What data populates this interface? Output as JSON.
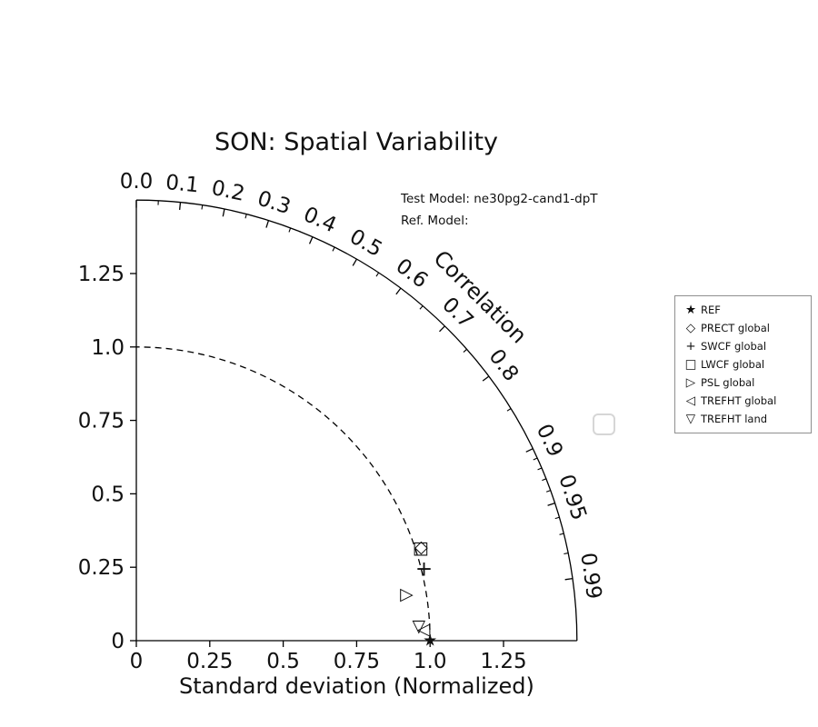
{
  "title": "SON: Spatial Variability",
  "annotations": {
    "test_model": "Test Model: ne30pg2-cand1-dpT",
    "ref_model": "Ref. Model:"
  },
  "chart_data": {
    "type": "scatter",
    "subtype": "taylor-diagram",
    "title": "SON: Spatial Variability",
    "xlabel": "Standard deviation (Normalized)",
    "arc_label": "Correlation",
    "radial_max": 1.5,
    "radial_ticks": [
      "0",
      "0.25",
      "0.5",
      "0.75",
      "1.0",
      "1.25"
    ],
    "radial_tick_values": [
      0,
      0.25,
      0.5,
      0.75,
      1.0,
      1.25
    ],
    "correlation_ticks": [
      {
        "label": "0.0",
        "value": 0.0
      },
      {
        "label": "0.1",
        "value": 0.1
      },
      {
        "label": "0.2",
        "value": 0.2
      },
      {
        "label": "0.3",
        "value": 0.3
      },
      {
        "label": "0.4",
        "value": 0.4
      },
      {
        "label": "0.5",
        "value": 0.5
      },
      {
        "label": "0.6",
        "value": 0.6
      },
      {
        "label": "0.7",
        "value": 0.7
      },
      {
        "label": "0.8",
        "value": 0.8
      },
      {
        "label": "0.9",
        "value": 0.9
      },
      {
        "label": "0.95",
        "value": 0.95
      },
      {
        "label": "0.99",
        "value": 0.99
      }
    ],
    "correlation_minor_ticks": [
      0.05,
      0.15,
      0.25,
      0.35,
      0.45,
      0.55,
      0.65,
      0.75,
      0.85,
      0.91,
      0.92,
      0.93,
      0.94,
      0.96,
      0.97,
      0.98
    ],
    "reference_circle_radius": 1.0,
    "points": [
      {
        "name": "REF",
        "marker": "star",
        "std": 1.0,
        "corr": 1.0
      },
      {
        "name": "PRECT global",
        "marker": "diamond",
        "std": 1.021,
        "corr": 0.95
      },
      {
        "name": "SWCF global",
        "marker": "plus",
        "std": 1.009,
        "corr": 0.9705
      },
      {
        "name": "LWCF global",
        "marker": "square",
        "std": 1.018,
        "corr": 0.9505
      },
      {
        "name": "PSL global",
        "marker": "triangle-right",
        "std": 0.934,
        "corr": 0.9855
      },
      {
        "name": "TREFHT global",
        "marker": "triangle-left",
        "std": 0.979,
        "corr": 0.9992
      },
      {
        "name": "TREFHT land",
        "marker": "triangle-down",
        "std": 0.963,
        "corr": 0.9987
      }
    ]
  },
  "legend": {
    "items": [
      {
        "marker": "star",
        "label": "REF"
      },
      {
        "marker": "diamond",
        "label": "PRECT global"
      },
      {
        "marker": "plus",
        "label": "SWCF global"
      },
      {
        "marker": "square",
        "label": "LWCF global"
      },
      {
        "marker": "triangle-right",
        "label": "PSL global"
      },
      {
        "marker": "triangle-left",
        "label": "TREFHT global"
      },
      {
        "marker": "triangle-down",
        "label": "TREFHT land"
      }
    ]
  },
  "colors": {
    "line": "#000000",
    "text": "#111111",
    "legend_border": "#8f8f8f",
    "background": "#ffffff"
  }
}
